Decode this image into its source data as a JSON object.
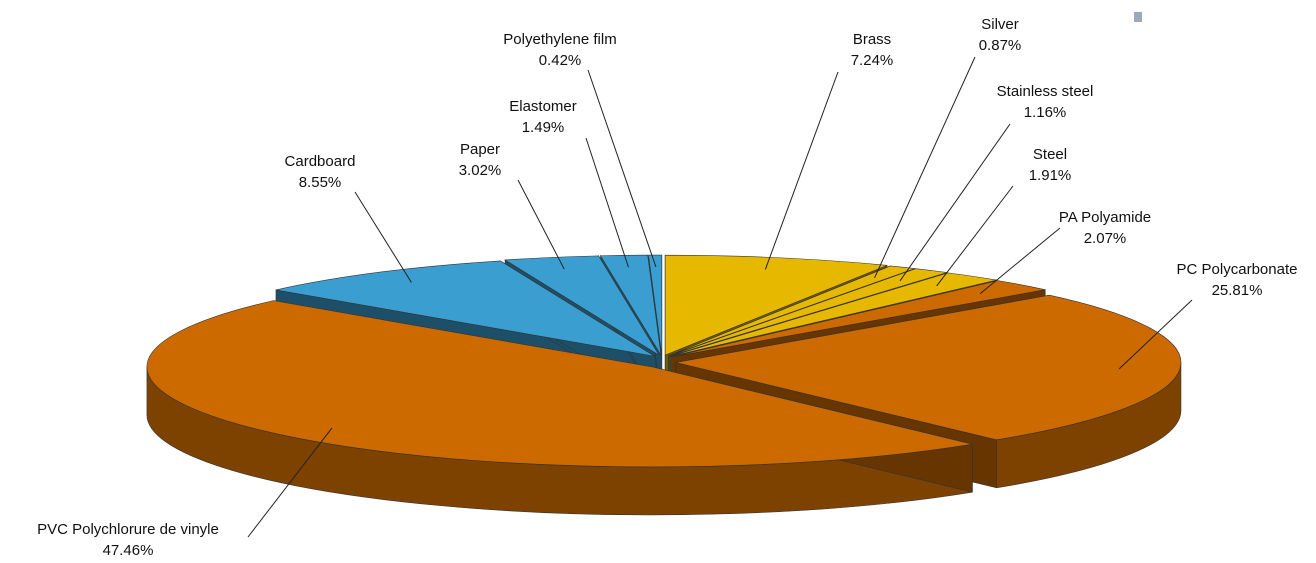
{
  "chart_data": {
    "type": "pie3d",
    "categories": [
      "Brass",
      "Silver",
      "Stainless steel",
      "Steel",
      "PA Polyamide",
      "PC Polycarbonate",
      "PVC Polychlorure de vinyle",
      "Cardboard",
      "Paper",
      "Elastomer",
      "Polyethylene film"
    ],
    "values": [
      7.24,
      0.87,
      1.16,
      1.91,
      2.07,
      25.81,
      47.46,
      8.55,
      3.02,
      1.49,
      0.42
    ],
    "value_labels": [
      "7.24%",
      "0.87%",
      "1.16%",
      "1.91%",
      "2.07%",
      "25.81%",
      "47.46%",
      "8.55%",
      "3.02%",
      "1.49%",
      "0.42%"
    ],
    "colors": [
      "#e6b800",
      "#e6b800",
      "#e6b800",
      "#e6b800",
      "#cc6a00",
      "#cc6a00",
      "#cc6a00",
      "#3a9fd0",
      "#3a9fd0",
      "#3a9fd0",
      "#3a9fd0"
    ]
  }
}
